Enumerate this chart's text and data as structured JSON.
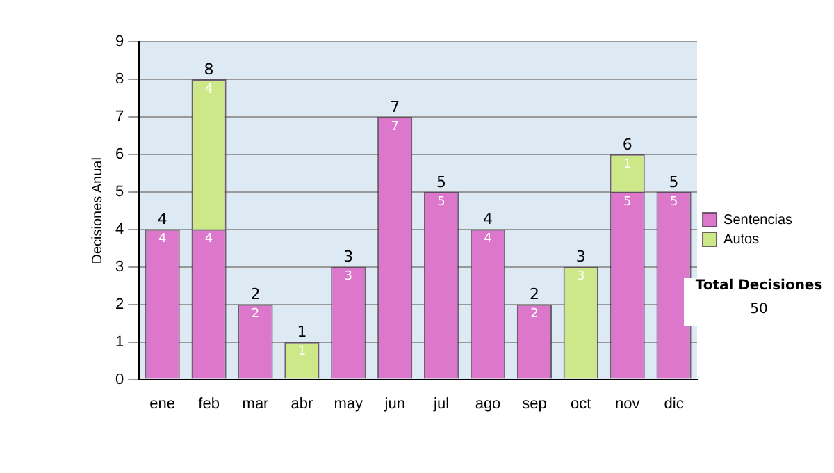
{
  "chart_data": {
    "type": "bar",
    "stacked": true,
    "ylabel": "Decisiones Anual",
    "categories": [
      "ene",
      "feb",
      "mar",
      "abr",
      "may",
      "jun",
      "jul",
      "ago",
      "sep",
      "oct",
      "nov",
      "dic"
    ],
    "series": [
      {
        "name": "Sentencias",
        "color": "#dd77cc",
        "values": [
          4,
          4,
          2,
          0,
          3,
          7,
          5,
          4,
          2,
          0,
          5,
          5
        ],
        "value_labels": [
          "4",
          "4",
          "2",
          null,
          "3",
          "7",
          "5",
          "4",
          "2",
          null,
          "5",
          "5"
        ]
      },
      {
        "name": "Autos",
        "color": "#cce888",
        "values": [
          0,
          4,
          0,
          1,
          0,
          0,
          0,
          0,
          0,
          3,
          1,
          0
        ],
        "value_labels": [
          null,
          "4",
          null,
          "1",
          null,
          null,
          null,
          null,
          null,
          "3",
          "1",
          null
        ]
      }
    ],
    "totals": [
      "4",
      "8",
      "2",
      "1",
      "3",
      "7",
      "5",
      "4",
      "2",
      "3",
      "6",
      "5"
    ],
    "ylim": [
      0,
      9
    ],
    "yticks": [
      0,
      1,
      2,
      3,
      4,
      5,
      6,
      7,
      8,
      9
    ],
    "grid": "y",
    "legend": "right",
    "annotations": [
      "Total Decisiones",
      "50"
    ]
  }
}
